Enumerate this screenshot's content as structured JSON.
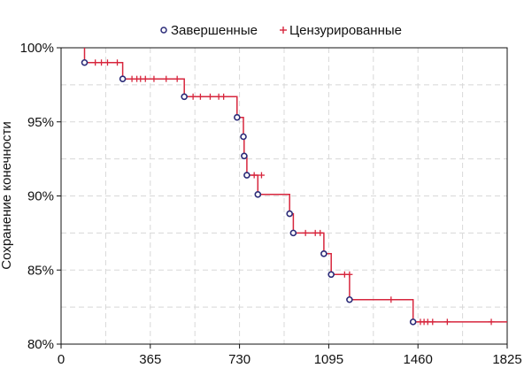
{
  "chart_data": {
    "type": "line",
    "subtype": "kaplan-meier",
    "title": "",
    "xlabel": "",
    "ylabel": "Сохранение конечности",
    "xlim": [
      0,
      1825
    ],
    "ylim": [
      80,
      100
    ],
    "x_ticks": [
      {
        "value": 0,
        "label": "0"
      },
      {
        "value": 365,
        "label": "365"
      },
      {
        "value": 730,
        "label": "730"
      },
      {
        "value": 1095,
        "label": "1095"
      },
      {
        "value": 1460,
        "label": "1460"
      },
      {
        "value": 1825,
        "label": "1825"
      }
    ],
    "y_ticks": [
      {
        "value": 80,
        "label": "80%"
      },
      {
        "value": 85,
        "label": "85%"
      },
      {
        "value": 90,
        "label": "90%"
      },
      {
        "value": 95,
        "label": "95%"
      },
      {
        "value": 100,
        "label": "100%"
      }
    ],
    "grid": true,
    "legend_position": "top",
    "legend": [
      {
        "name": "Завершенные",
        "marker": "circle"
      },
      {
        "name": "Цензурированные",
        "marker": "plus"
      }
    ],
    "step_curve": [
      [
        96,
        100
      ],
      [
        96,
        99.0
      ],
      [
        252,
        99.0
      ],
      [
        252,
        97.9
      ],
      [
        504,
        97.9
      ],
      [
        504,
        96.7
      ],
      [
        720,
        96.7
      ],
      [
        720,
        95.3
      ],
      [
        746,
        95.3
      ],
      [
        746,
        94.0
      ],
      [
        749,
        94.0
      ],
      [
        749,
        92.7
      ],
      [
        760,
        92.7
      ],
      [
        760,
        91.4
      ],
      [
        805,
        91.4
      ],
      [
        805,
        90.1
      ],
      [
        935,
        90.1
      ],
      [
        935,
        88.8
      ],
      [
        950,
        88.8
      ],
      [
        950,
        87.5
      ],
      [
        1075,
        87.5
      ],
      [
        1075,
        86.1
      ],
      [
        1105,
        86.1
      ],
      [
        1105,
        84.7
      ],
      [
        1180,
        84.7
      ],
      [
        1180,
        83.0
      ],
      [
        1440,
        83.0
      ],
      [
        1440,
        81.5
      ],
      [
        1825,
        81.5
      ]
    ],
    "completed": [
      [
        96,
        99.0
      ],
      [
        252,
        97.9
      ],
      [
        504,
        96.7
      ],
      [
        720,
        95.3
      ],
      [
        746,
        94.0
      ],
      [
        749,
        92.7
      ],
      [
        760,
        91.4
      ],
      [
        805,
        90.1
      ],
      [
        935,
        88.8
      ],
      [
        950,
        87.5
      ],
      [
        1075,
        86.1
      ],
      [
        1105,
        84.7
      ],
      [
        1180,
        83.0
      ],
      [
        1440,
        81.5
      ]
    ],
    "censored": [
      [
        140,
        99.0
      ],
      [
        165,
        99.0
      ],
      [
        190,
        99.0
      ],
      [
        230,
        99.0
      ],
      [
        290,
        97.9
      ],
      [
        310,
        97.9
      ],
      [
        325,
        97.9
      ],
      [
        345,
        97.9
      ],
      [
        380,
        97.9
      ],
      [
        430,
        97.9
      ],
      [
        475,
        97.9
      ],
      [
        540,
        96.7
      ],
      [
        570,
        96.7
      ],
      [
        610,
        96.7
      ],
      [
        645,
        96.7
      ],
      [
        665,
        96.7
      ],
      [
        790,
        91.4
      ],
      [
        820,
        91.4
      ],
      [
        1000,
        87.5
      ],
      [
        1040,
        87.5
      ],
      [
        1060,
        87.5
      ],
      [
        1160,
        84.7
      ],
      [
        1180,
        84.7
      ],
      [
        1350,
        83.0
      ],
      [
        1470,
        81.5
      ],
      [
        1485,
        81.5
      ],
      [
        1500,
        81.5
      ],
      [
        1520,
        81.5
      ],
      [
        1580,
        81.5
      ],
      [
        1760,
        81.5
      ]
    ],
    "colors": {
      "curve": "#d7263d",
      "completed_marker": "#2b2b78",
      "censored_marker": "#d7263d",
      "grid": "#d8d8d8",
      "axis": "#111111"
    }
  }
}
